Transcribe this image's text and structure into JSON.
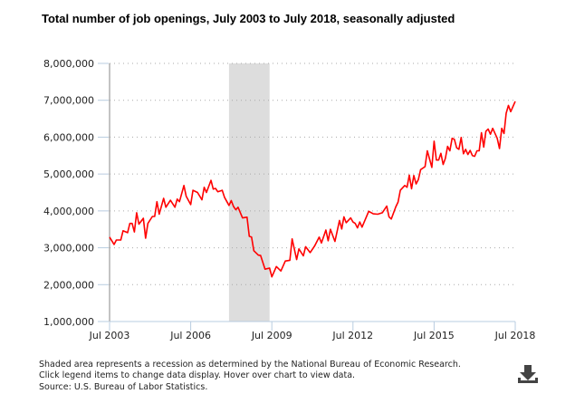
{
  "chart_data": {
    "type": "line",
    "title": "Total number of job openings, July 2003 to July 2018, seasonally adjusted",
    "xlabel": "",
    "ylabel": "",
    "x_tick_labels": [
      "Jul 2003",
      "Jul 2006",
      "Jul 2009",
      "Jul 2012",
      "Jul 2015",
      "Jul 2018"
    ],
    "y_tick_labels": [
      "1,000,000",
      "2,000,000",
      "3,000,000",
      "4,000,000",
      "5,000,000",
      "6,000,000",
      "7,000,000",
      "8,000,000"
    ],
    "xlim": [
      "2003-07",
      "2018-07"
    ],
    "ylim": [
      1000000,
      8000000
    ],
    "grid": "horizontal dotted",
    "line_color": "#ff0000",
    "recession_shading": {
      "start": "2007-12",
      "end": "2009-06",
      "color": "#dddddd"
    },
    "series": [
      {
        "points": [
          [
            "2003-07",
            3290000
          ],
          [
            "2003-09",
            3090000
          ],
          [
            "2003-10",
            3210000
          ],
          [
            "2003-12",
            3210000
          ],
          [
            "2004-01",
            3460000
          ],
          [
            "2004-03",
            3410000
          ],
          [
            "2004-04",
            3660000
          ],
          [
            "2004-05",
            3660000
          ],
          [
            "2004-06",
            3430000
          ],
          [
            "2004-07",
            3950000
          ],
          [
            "2004-08",
            3640000
          ],
          [
            "2004-10",
            3800000
          ],
          [
            "2004-11",
            3260000
          ],
          [
            "2004-12",
            3660000
          ],
          [
            "2005-02",
            3850000
          ],
          [
            "2005-03",
            3850000
          ],
          [
            "2005-04",
            4250000
          ],
          [
            "2005-05",
            3910000
          ],
          [
            "2005-07",
            4340000
          ],
          [
            "2005-08",
            4100000
          ],
          [
            "2005-10",
            4290000
          ],
          [
            "2005-12",
            4100000
          ],
          [
            "2006-01",
            4320000
          ],
          [
            "2006-02",
            4250000
          ],
          [
            "2006-04",
            4690000
          ],
          [
            "2006-05",
            4400000
          ],
          [
            "2006-07",
            4170000
          ],
          [
            "2006-08",
            4560000
          ],
          [
            "2006-10",
            4500000
          ],
          [
            "2006-12",
            4300000
          ],
          [
            "2007-01",
            4640000
          ],
          [
            "2007-02",
            4500000
          ],
          [
            "2007-04",
            4830000
          ],
          [
            "2007-05",
            4590000
          ],
          [
            "2007-06",
            4610000
          ],
          [
            "2007-07",
            4520000
          ],
          [
            "2007-09",
            4560000
          ],
          [
            "2007-10",
            4370000
          ],
          [
            "2007-12",
            4150000
          ],
          [
            "2008-01",
            4280000
          ],
          [
            "2008-02",
            4120000
          ],
          [
            "2008-03",
            4030000
          ],
          [
            "2008-04",
            4100000
          ],
          [
            "2008-06",
            3810000
          ],
          [
            "2008-08",
            3830000
          ],
          [
            "2008-09",
            3310000
          ],
          [
            "2008-10",
            3290000
          ],
          [
            "2008-11",
            2920000
          ],
          [
            "2009-01",
            2800000
          ],
          [
            "2009-02",
            2790000
          ],
          [
            "2009-04",
            2420000
          ],
          [
            "2009-06",
            2450000
          ],
          [
            "2009-07",
            2210000
          ],
          [
            "2009-09",
            2490000
          ],
          [
            "2009-11",
            2370000
          ],
          [
            "2010-01",
            2640000
          ],
          [
            "2010-03",
            2660000
          ],
          [
            "2010-04",
            3240000
          ],
          [
            "2010-06",
            2680000
          ],
          [
            "2010-07",
            2970000
          ],
          [
            "2010-09",
            2780000
          ],
          [
            "2010-10",
            3030000
          ],
          [
            "2010-12",
            2870000
          ],
          [
            "2011-02",
            3050000
          ],
          [
            "2011-04",
            3290000
          ],
          [
            "2011-05",
            3130000
          ],
          [
            "2011-07",
            3480000
          ],
          [
            "2011-08",
            3190000
          ],
          [
            "2011-09",
            3500000
          ],
          [
            "2011-11",
            3170000
          ],
          [
            "2012-01",
            3740000
          ],
          [
            "2012-02",
            3510000
          ],
          [
            "2012-03",
            3840000
          ],
          [
            "2012-04",
            3680000
          ],
          [
            "2012-06",
            3810000
          ],
          [
            "2012-07",
            3700000
          ],
          [
            "2012-08",
            3660000
          ],
          [
            "2012-09",
            3540000
          ],
          [
            "2012-10",
            3700000
          ],
          [
            "2012-11",
            3560000
          ],
          [
            "2013-02",
            3990000
          ],
          [
            "2013-04",
            3920000
          ],
          [
            "2013-06",
            3910000
          ],
          [
            "2013-08",
            3950000
          ],
          [
            "2013-10",
            4130000
          ],
          [
            "2013-11",
            3840000
          ],
          [
            "2013-12",
            3780000
          ],
          [
            "2014-02",
            4110000
          ],
          [
            "2014-03",
            4240000
          ],
          [
            "2014-04",
            4560000
          ],
          [
            "2014-06",
            4690000
          ],
          [
            "2014-07",
            4640000
          ],
          [
            "2014-08",
            4970000
          ],
          [
            "2014-09",
            4600000
          ],
          [
            "2014-10",
            4960000
          ],
          [
            "2014-11",
            4730000
          ],
          [
            "2014-12",
            4850000
          ],
          [
            "2015-01",
            5120000
          ],
          [
            "2015-03",
            5200000
          ],
          [
            "2015-04",
            5630000
          ],
          [
            "2015-06",
            5180000
          ],
          [
            "2015-07",
            5890000
          ],
          [
            "2015-08",
            5380000
          ],
          [
            "2015-09",
            5380000
          ],
          [
            "2015-10",
            5560000
          ],
          [
            "2015-11",
            5260000
          ],
          [
            "2015-12",
            5420000
          ],
          [
            "2016-01",
            5750000
          ],
          [
            "2016-02",
            5630000
          ],
          [
            "2016-03",
            5970000
          ],
          [
            "2016-04",
            5940000
          ],
          [
            "2016-05",
            5710000
          ],
          [
            "2016-06",
            5670000
          ],
          [
            "2016-07",
            5990000
          ],
          [
            "2016-08",
            5550000
          ],
          [
            "2016-09",
            5670000
          ],
          [
            "2016-10",
            5530000
          ],
          [
            "2016-11",
            5640000
          ],
          [
            "2016-12",
            5500000
          ],
          [
            "2017-01",
            5480000
          ],
          [
            "2017-02",
            5630000
          ],
          [
            "2017-03",
            5630000
          ],
          [
            "2017-04",
            6120000
          ],
          [
            "2017-05",
            5730000
          ],
          [
            "2017-06",
            6160000
          ],
          [
            "2017-07",
            6220000
          ],
          [
            "2017-08",
            6080000
          ],
          [
            "2017-09",
            6240000
          ],
          [
            "2017-11",
            5970000
          ],
          [
            "2017-12",
            5690000
          ],
          [
            "2018-01",
            6240000
          ],
          [
            "2018-02",
            6100000
          ],
          [
            "2018-03",
            6650000
          ],
          [
            "2018-04",
            6860000
          ],
          [
            "2018-05",
            6690000
          ],
          [
            "2018-07",
            6970000
          ]
        ]
      }
    ]
  },
  "notes": [
    "Shaded area represents a recession as determined by the National Bureau of Economic Research.",
    "Click legend items to change data display. Hover over chart to view data.",
    "Source: U.S. Bureau of Labor Statistics."
  ],
  "download_icon": "download-icon"
}
